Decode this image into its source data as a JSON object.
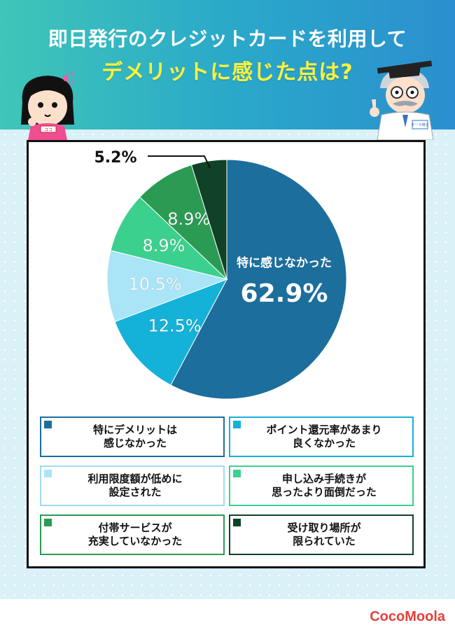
{
  "header": {
    "title_line1": "即日発行のクレジットカードを利用して",
    "title_line2": "デメリットに感じた点は?"
  },
  "characters": {
    "girl_badge": "ココ",
    "professor_badge": "モーラ博士"
  },
  "chart_data": {
    "type": "pie",
    "slices": [
      {
        "label": "特に感じなかった",
        "legend": "特にデメリットは\n感じなかった",
        "value": 62.9,
        "value_label": "62.9%",
        "color": "#1c6e9c"
      },
      {
        "label": "",
        "legend": "ポイント還元率があまり\n良くなかった",
        "value": 12.5,
        "value_label": "12.5%",
        "color": "#14b1d8"
      },
      {
        "label": "",
        "legend": "利用限度額が低めに\n設定された",
        "value": 10.5,
        "value_label": "10.5%",
        "color": "#a9e4f7"
      },
      {
        "label": "",
        "legend": "申し込み手続きが\n思ったより面倒だった",
        "value": 8.9,
        "value_label": "8.9%",
        "color": "#3bd08e"
      },
      {
        "label": "",
        "legend": "付帯サービスが\n充実していなかった",
        "value": 8.9,
        "value_label": "8.9%",
        "color": "#2b9b54"
      },
      {
        "label": "",
        "legend": "受け取り場所が\n限られていた",
        "value": 5.2,
        "value_label": "5.2%",
        "color": "#0f4227"
      }
    ],
    "start": "12 o'clock",
    "direction": "clockwise",
    "legend_placement": "bottom"
  },
  "legend_border_colors": [
    "#1c6e9c",
    "#14b1d8",
    "#9fdcf2",
    "#3bd08e",
    "#2b9b54",
    "#0f4227"
  ],
  "brand": {
    "name": "CocoMoola",
    "color": "#e6403a"
  }
}
